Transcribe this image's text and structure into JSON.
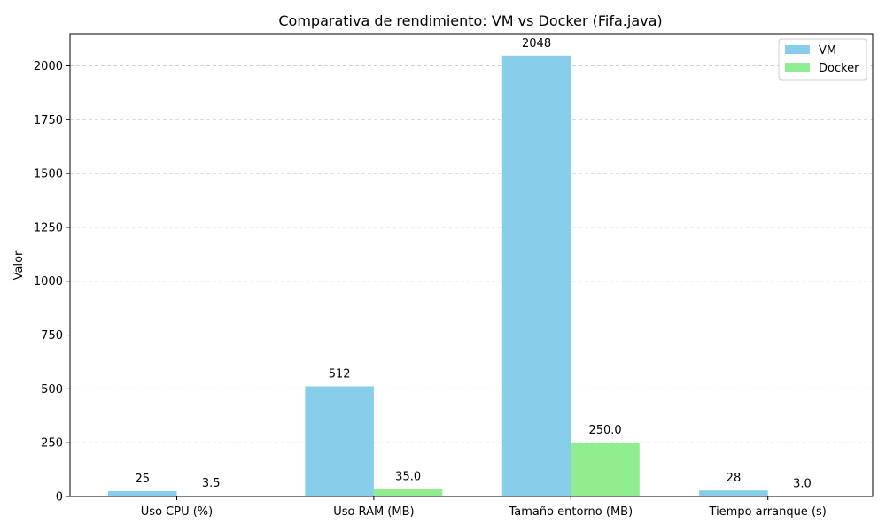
{
  "chart_data": {
    "type": "bar",
    "title": "Comparativa de rendimiento: VM vs Docker (Fifa.java)",
    "xlabel": "",
    "ylabel": "Valor",
    "categories": [
      "Uso CPU (%)",
      "Uso RAM (MB)",
      "Tamaño entorno (MB)",
      "Tiempo arranque (s)"
    ],
    "series": [
      {
        "name": "VM",
        "values": [
          25,
          512,
          2048,
          28
        ],
        "labels": [
          "25",
          "512",
          "2048",
          "28"
        ],
        "color": "#87ceeb"
      },
      {
        "name": "Docker",
        "values": [
          3.5,
          35.0,
          250.0,
          3.0
        ],
        "labels": [
          "3.5",
          "35.0",
          "250.0",
          "3.0"
        ],
        "color": "#90ee90"
      }
    ],
    "ylim": [
      0,
      2150
    ],
    "yticks": [
      0,
      250,
      500,
      750,
      1000,
      1250,
      1500,
      1750,
      2000
    ],
    "grid": true,
    "legend_position": "top-right"
  }
}
